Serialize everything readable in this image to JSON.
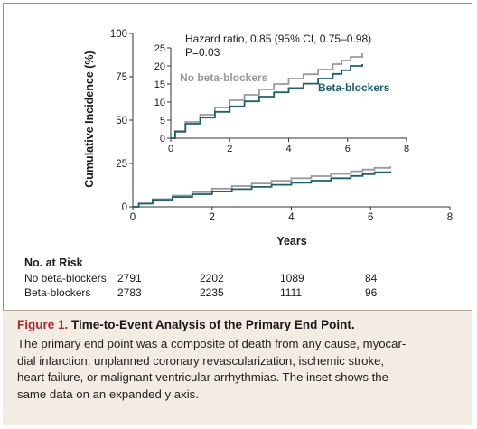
{
  "chart_data": [
    {
      "type": "line",
      "panel": "main",
      "ylabel": "Cumulative Incidence (%)",
      "xlabel": "Years",
      "xlim": [
        0,
        8
      ],
      "ylim": [
        0,
        100
      ],
      "xticks": [
        "0",
        "2",
        "4",
        "6",
        "8"
      ],
      "yticks": [
        "0",
        "25",
        "50",
        "75",
        "100"
      ],
      "series": [
        {
          "name": "No beta-blockers",
          "color": "#9a9a9a",
          "x": [
            0,
            0.15,
            0.5,
            1,
            1.5,
            2,
            2.5,
            3,
            3.5,
            4,
            4.5,
            5,
            5.5,
            5.8,
            6.1,
            6.5
          ],
          "y": [
            0,
            2,
            4.5,
            6.5,
            8.5,
            10.5,
            12,
            13.5,
            15,
            16.5,
            17.7,
            19,
            20.5,
            21.5,
            22.5,
            23.5
          ]
        },
        {
          "name": "Beta-blockers",
          "color": "#1d6070",
          "x": [
            0,
            0.15,
            0.5,
            1,
            1.5,
            2,
            2.5,
            3,
            3.5,
            4,
            4.5,
            5,
            5.5,
            5.8,
            6.1,
            6.5
          ],
          "y": [
            0,
            1.8,
            4,
            5.7,
            7.3,
            8.8,
            10.2,
            11.5,
            12.7,
            13.9,
            15.1,
            16.5,
            17.8,
            18.8,
            20,
            20.5
          ]
        }
      ]
    },
    {
      "type": "line",
      "panel": "inset",
      "xlim": [
        0,
        8
      ],
      "ylim": [
        0,
        25
      ],
      "xticks": [
        "0",
        "2",
        "4",
        "6",
        "8"
      ],
      "yticks": [
        "0",
        "5",
        "10",
        "15",
        "20",
        "25"
      ],
      "annotation_line1": "Hazard ratio, 0.85 (95% CI, 0.75–0.98)",
      "annotation_line2": "P=0.03",
      "series": [
        {
          "name": "No beta-blockers",
          "color": "#9a9a9a",
          "label": "No beta-blockers",
          "x": [
            0,
            0.15,
            0.5,
            1,
            1.5,
            2,
            2.5,
            3,
            3.5,
            4,
            4.5,
            5,
            5.5,
            5.8,
            6.1,
            6.5
          ],
          "y": [
            0,
            2,
            4.5,
            6.5,
            8.5,
            10.5,
            12,
            13.5,
            15,
            16.5,
            17.7,
            19,
            20.5,
            21.5,
            22.5,
            23.5
          ]
        },
        {
          "name": "Beta-blockers",
          "color": "#1d6070",
          "label": "Beta-blockers",
          "x": [
            0,
            0.15,
            0.5,
            1,
            1.5,
            2,
            2.5,
            3,
            3.5,
            4,
            4.5,
            5,
            5.5,
            5.8,
            6.1,
            6.5
          ],
          "y": [
            0,
            1.8,
            4,
            5.7,
            7.3,
            8.8,
            10.2,
            11.5,
            12.7,
            13.9,
            15.1,
            16.5,
            17.8,
            18.8,
            20,
            20.5
          ]
        }
      ]
    }
  ],
  "risk_table": {
    "title": "No. at Risk",
    "rows": [
      {
        "label": "No beta-blockers",
        "values": [
          "2791",
          "2202",
          "1089",
          "84"
        ]
      },
      {
        "label": "Beta-blockers",
        "values": [
          "2783",
          "2235",
          "1111",
          "96"
        ]
      }
    ]
  },
  "caption": {
    "figure_label": "Figure 1.",
    "title": "Time-to-Event Analysis of the Primary End Point.",
    "line1": "The primary end point was a composite of death from any cause, myocar-",
    "line2": "dial infarction, unplanned coronary revascularization, ischemic stroke,",
    "line3": "heart failure, or malignant ventricular arrhythmias. The inset shows the",
    "line4": "same data on an expanded y axis."
  }
}
